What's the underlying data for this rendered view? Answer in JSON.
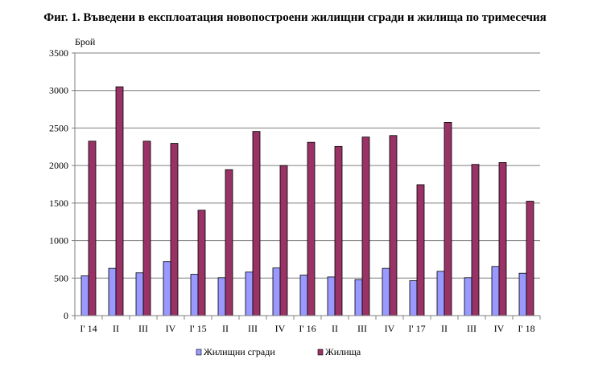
{
  "chart_data": {
    "type": "bar",
    "title": "Фиг. 1. Въведени в експлоатация новопостроени жилищни сгради и жилища по тримесечия",
    "ylabel": "Брой",
    "xlabel": "",
    "ylim": [
      0,
      3500
    ],
    "yticks": [
      0,
      500,
      1000,
      1500,
      2000,
      2500,
      3000,
      3500
    ],
    "grid": true,
    "legend_position": "bottom",
    "categories": [
      "I' 14",
      "II",
      "III",
      "IV",
      "I' 15",
      "II",
      "III",
      "IV",
      "I' 16",
      "II",
      "III",
      "IV",
      "I' 17",
      "II",
      "III",
      "IV",
      "I' 18"
    ],
    "series": [
      {
        "name": "Жилищни сгради",
        "color": "#9999ff",
        "values": [
          530,
          630,
          570,
          720,
          550,
          505,
          580,
          635,
          540,
          515,
          480,
          630,
          465,
          590,
          505,
          655,
          565
        ]
      },
      {
        "name": "Жилища",
        "color": "#993366",
        "values": [
          2325,
          3050,
          2325,
          2295,
          1405,
          1945,
          2455,
          2000,
          2310,
          2255,
          2380,
          2400,
          1745,
          2575,
          2015,
          2040,
          1525
        ]
      }
    ]
  }
}
